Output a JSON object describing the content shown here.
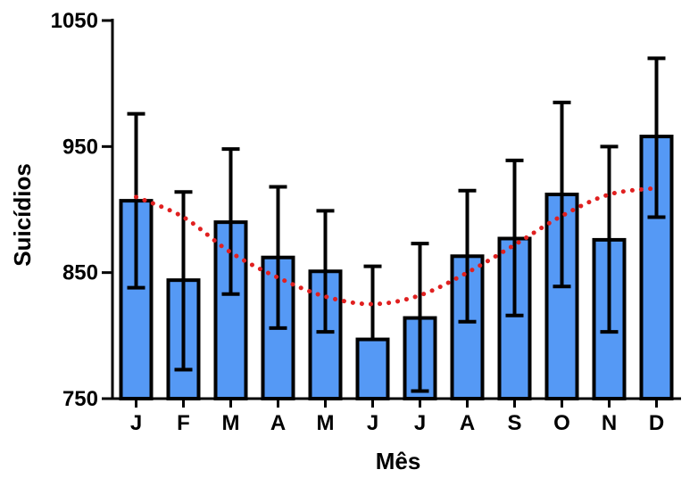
{
  "chart_data": {
    "type": "bar",
    "title": "",
    "xlabel": "Mês",
    "ylabel": "Suicídios",
    "ylim": [
      750,
      1050
    ],
    "yticks": [
      750,
      850,
      950,
      1050
    ],
    "ytick_labels": [
      "750",
      "850",
      "950",
      "1050"
    ],
    "categories": [
      "J",
      "F",
      "M",
      "A",
      "M",
      "J",
      "J",
      "A",
      "S",
      "O",
      "N",
      "D"
    ],
    "values": [
      907,
      844,
      890,
      862,
      851,
      797,
      814,
      863,
      877,
      912,
      876,
      958
    ],
    "error_low": [
      838,
      773,
      833,
      806,
      803,
      null,
      756,
      811,
      816,
      839,
      803,
      894
    ],
    "error_high": [
      976,
      914,
      948,
      918,
      899,
      855,
      873,
      915,
      939,
      985,
      950,
      1020
    ],
    "trend": {
      "style": "dotted",
      "values": [
        910,
        894,
        866,
        846,
        831,
        825,
        832,
        850,
        872,
        895,
        912,
        917
      ]
    },
    "grid": false,
    "legend": "none",
    "colors": {
      "bar_fill": "#5599f5",
      "bar_stroke": "#000000",
      "trend": "#e02020",
      "axis": "#000000"
    }
  }
}
